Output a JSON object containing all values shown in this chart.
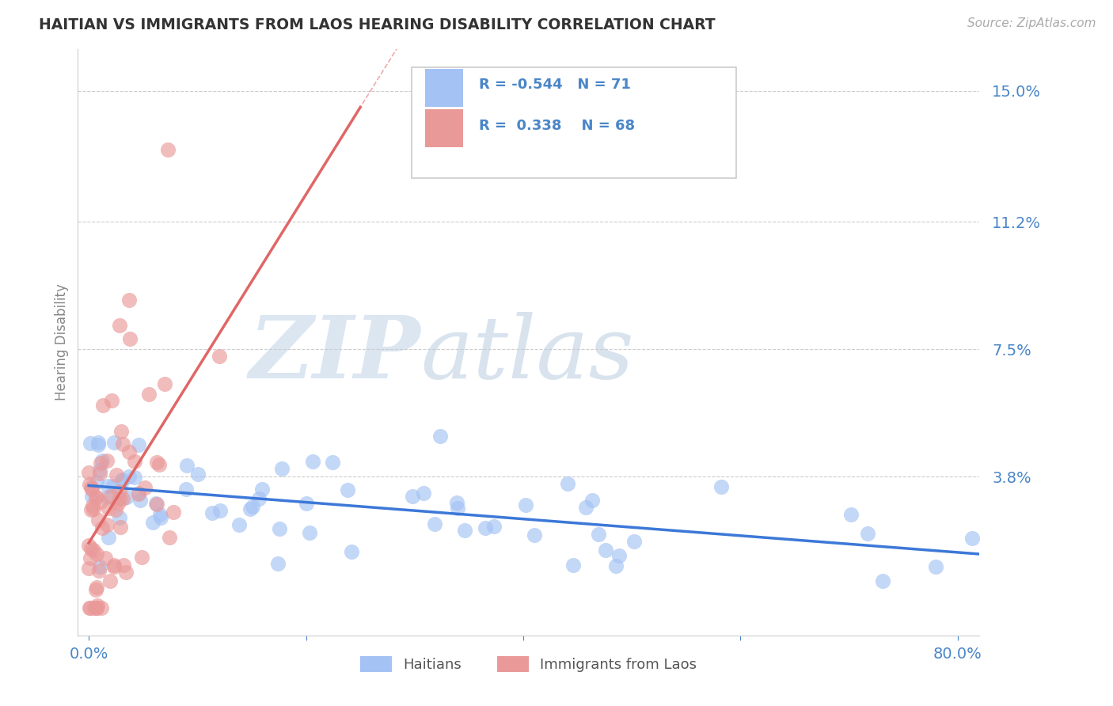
{
  "title": "HAITIAN VS IMMIGRANTS FROM LAOS HEARING DISABILITY CORRELATION CHART",
  "source": "Source: ZipAtlas.com",
  "ylabel": "Hearing Disability",
  "R1": -0.544,
  "N1": 71,
  "R2": 0.338,
  "N2": 68,
  "color_blue": "#a4c2f4",
  "color_pink": "#ea9999",
  "line_blue": "#3c78d8",
  "line_pink": "#e06666",
  "tick_color": "#4a86c8",
  "watermark_zip": "ZIP",
  "watermark_atlas": "atlas",
  "legend_label1": "Haitians",
  "legend_label2": "Immigrants from Laos",
  "xlim_min": -0.01,
  "xlim_max": 0.82,
  "ylim_min": -0.008,
  "ylim_max": 0.162,
  "ytick_vals": [
    0.0,
    0.038,
    0.075,
    0.112,
    0.15
  ],
  "ytick_labels": [
    "",
    "3.8%",
    "7.5%",
    "11.2%",
    "15.0%"
  ],
  "xtick_vals": [
    0.0,
    0.2,
    0.4,
    0.6,
    0.8
  ],
  "xtick_labels": [
    "0.0%",
    "",
    "",
    "",
    "80.0%"
  ]
}
